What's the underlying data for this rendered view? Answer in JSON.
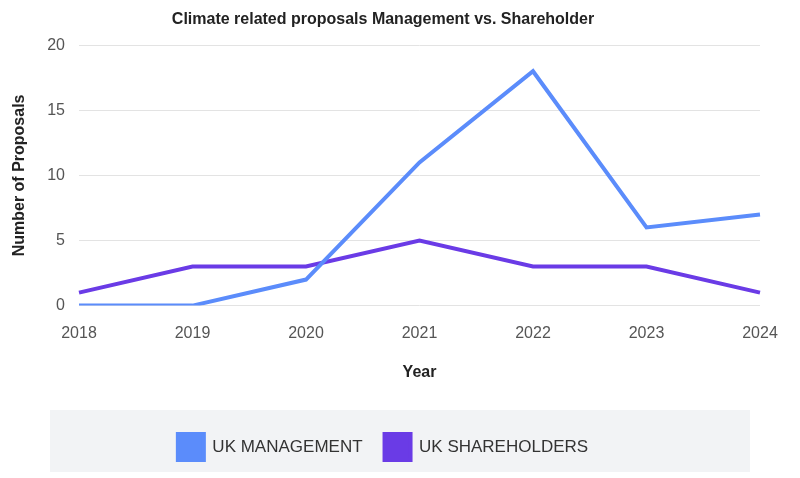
{
  "chart_data": {
    "type": "line",
    "title": "Climate related proposals Management vs. Shareholder",
    "x_label": "Year",
    "y_label": "Number of Proposals",
    "categories": [
      "2018",
      "2019",
      "2020",
      "2021",
      "2022",
      "2023",
      "2024"
    ],
    "series": [
      {
        "name": "UK MANAGEMENT",
        "color": "#5b8cfb",
        "values": [
          0,
          0,
          2,
          11,
          18,
          6,
          7
        ]
      },
      {
        "name": "UK SHAREHOLDERS",
        "color": "#6a3be6",
        "values": [
          1,
          3,
          3,
          5,
          3,
          3,
          1
        ]
      }
    ],
    "ylim": [
      0,
      20
    ],
    "yticks": [
      0,
      5,
      10,
      15,
      20
    ],
    "grid": true,
    "legend": "bottom"
  }
}
